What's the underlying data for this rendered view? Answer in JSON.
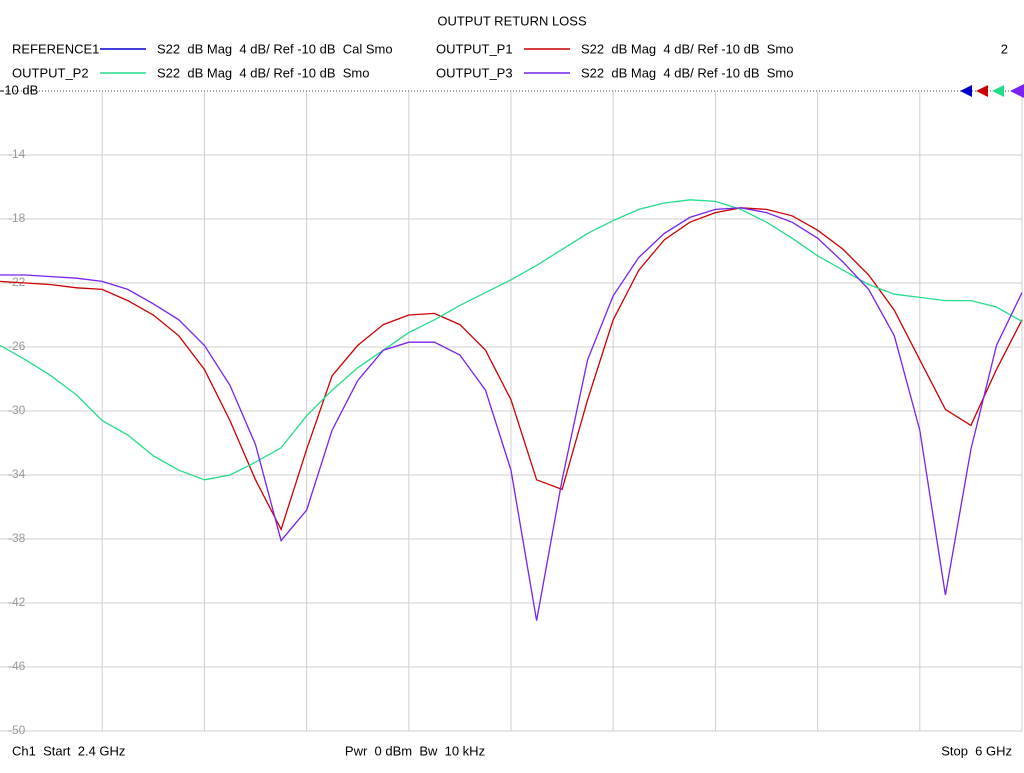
{
  "chart_data": {
    "type": "line",
    "title": "OUTPUT RETURN LOSS",
    "window_number": "2",
    "footer_left": "Ch1  Start  2.4 GHz",
    "footer_center": "Pwr  0 dBm  Bw  10 kHz",
    "footer_right": "Stop  6 GHz",
    "xlim": [
      2.4,
      6.0
    ],
    "xticks": [
      2.76,
      3.12,
      3.48,
      3.84,
      4.2,
      4.56,
      4.92,
      5.28,
      5.64
    ],
    "ylim": [
      -50,
      -10
    ],
    "yticks": [
      {
        "value": -10,
        "label": "-10 dB"
      },
      -14,
      -18,
      -22,
      -26,
      -30,
      -34,
      -38,
      -42,
      -46,
      -50
    ],
    "grid": true,
    "x": [
      2.4,
      2.49,
      2.58,
      2.67,
      2.76,
      2.85,
      2.94,
      3.03,
      3.12,
      3.21,
      3.3,
      3.39,
      3.48,
      3.57,
      3.66,
      3.75,
      3.84,
      3.93,
      4.02,
      4.11,
      4.2,
      4.29,
      4.38,
      4.47,
      4.56,
      4.65,
      4.74,
      4.83,
      4.92,
      5.01,
      5.1,
      5.19,
      5.28,
      5.37,
      5.46,
      5.55,
      5.64,
      5.73,
      5.82,
      5.91,
      6.0
    ],
    "series": [
      {
        "name": "REFERENCE1",
        "description": "S22  dB Mag  4 dB/ Ref -10 dB  Cal Smo",
        "color": "#0000cc",
        "values": [
          null,
          null,
          null,
          null,
          null,
          null,
          null,
          null,
          null,
          null,
          null,
          null,
          null,
          null,
          null,
          null,
          null,
          null,
          null,
          null,
          null,
          null,
          null,
          null,
          null,
          null,
          null,
          null,
          null,
          null,
          null,
          null,
          null,
          null,
          null,
          null,
          null,
          null,
          null,
          null,
          null
        ]
      },
      {
        "name": "OUTPUT_P1",
        "description": "S22  dB Mag  4 dB/ Ref -10 dB  Smo",
        "color": "#cc0000",
        "values": [
          -21.9,
          -22,
          -22.1,
          -22.3,
          -22.4,
          -23.1,
          -24,
          -25.3,
          -27.4,
          -30.6,
          -34.3,
          -37.4,
          -32.4,
          -27.8,
          -25.9,
          -24.6,
          -24,
          -23.9,
          -24.6,
          -26.2,
          -29.3,
          -34.3,
          -34.9,
          -29.3,
          -24.3,
          -21.2,
          -19.3,
          -18.2,
          -17.6,
          -17.3,
          -17.4,
          -17.8,
          -18.7,
          -19.9,
          -21.5,
          -23.7,
          -26.8,
          -29.9,
          -30.9,
          -27.4,
          -24.3
        ]
      },
      {
        "name": "OUTPUT_P2",
        "description": "S22  dB Mag  4 dB/ Ref -10 dB  Smo",
        "color": "#22dd88",
        "values": [
          -25.9,
          -26.8,
          -27.8,
          -29,
          -30.6,
          -31.5,
          -32.8,
          -33.7,
          -34.3,
          -34,
          -33.2,
          -32.3,
          -30.3,
          -28.7,
          -27.3,
          -26.2,
          -25.1,
          -24.3,
          -23.4,
          -22.6,
          -21.8,
          -20.9,
          -19.9,
          -18.9,
          -18.1,
          -17.4,
          -17,
          -16.8,
          -16.9,
          -17.4,
          -18.2,
          -19.2,
          -20.3,
          -21.2,
          -22.1,
          -22.7,
          -22.9,
          -23.1,
          -23.1,
          -23.5,
          -24.4
        ]
      },
      {
        "name": "OUTPUT_P3",
        "description": "S22  dB Mag  4 dB/ Ref -10 dB  Smo",
        "color": "#7722ee",
        "values": [
          -21.5,
          -21.5,
          -21.6,
          -21.7,
          -21.9,
          -22.4,
          -23.3,
          -24.3,
          -25.9,
          -28.4,
          -32.1,
          -38.1,
          -36.2,
          -31.2,
          -28.1,
          -26.2,
          -25.7,
          -25.7,
          -26.5,
          -28.7,
          -33.7,
          -43.1,
          -34.3,
          -26.8,
          -22.8,
          -20.4,
          -18.9,
          -17.9,
          -17.4,
          -17.3,
          -17.6,
          -18.2,
          -19.2,
          -20.7,
          -22.4,
          -25.3,
          -31.2,
          -41.5,
          -32.4,
          -25.9,
          -22.6
        ]
      }
    ]
  }
}
